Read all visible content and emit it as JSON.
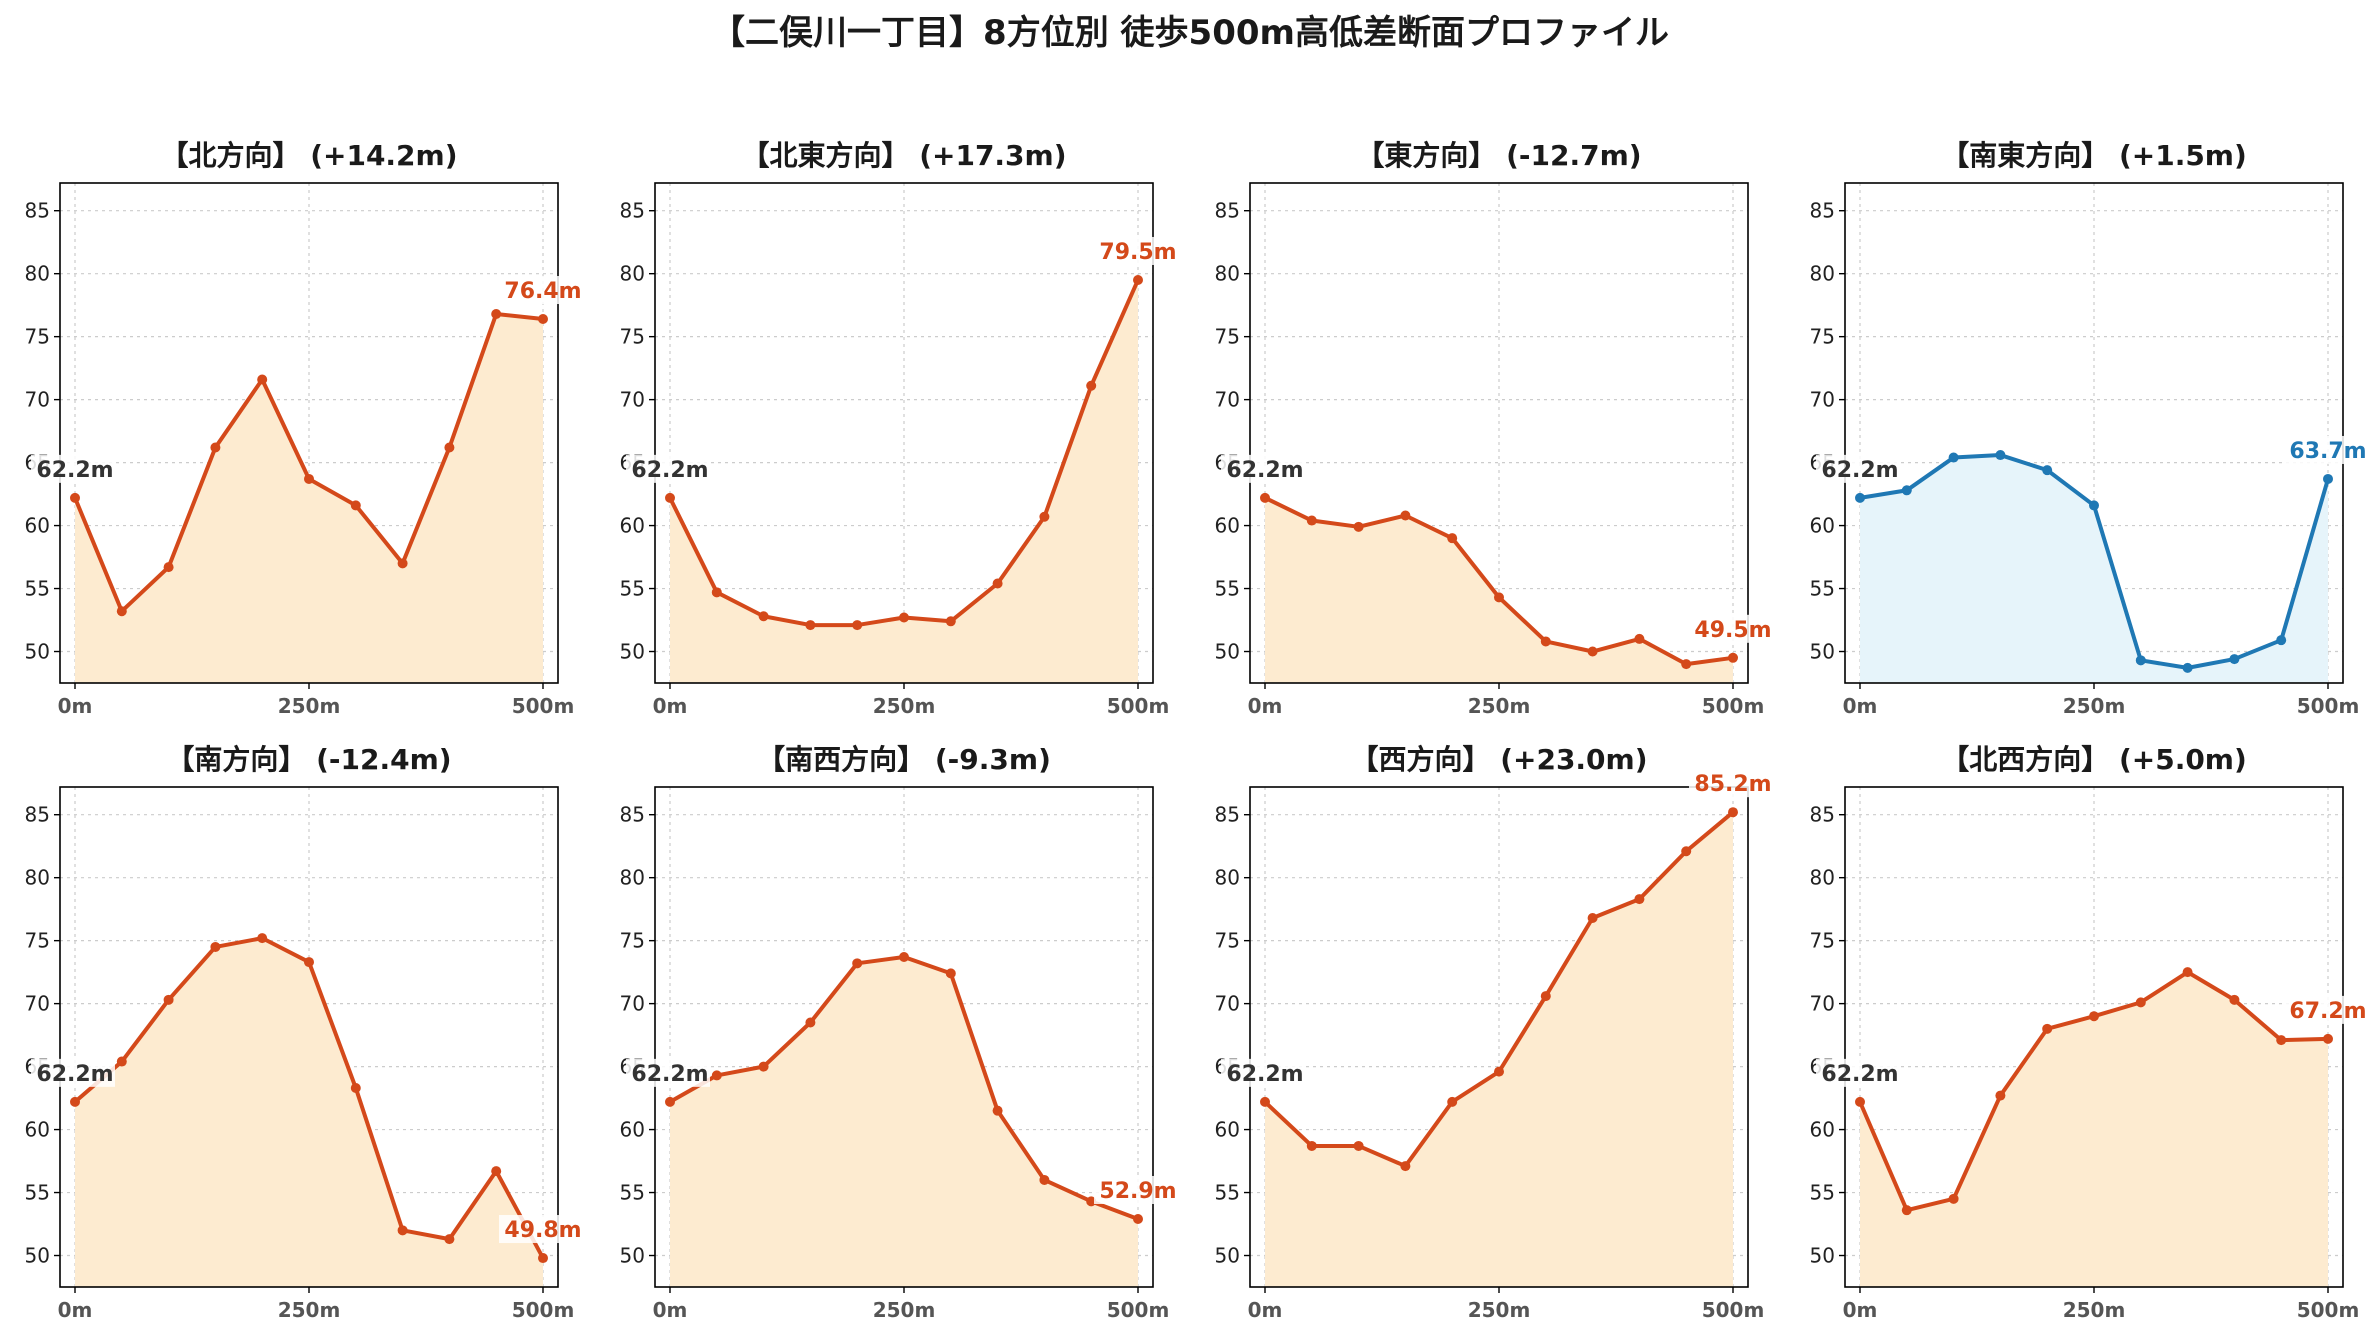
{
  "title": "【二俣川一丁目】8方位別 徒歩500m高低差断面プロファイル",
  "colors": {
    "default_line": "#d4491a",
    "default_fill": "#fdebd0",
    "flat_line": "#1f78b4",
    "flat_fill": "#e6f4fa",
    "start_label": "#333333",
    "grid": "#cccccc"
  },
  "chart_data": [
    {
      "type": "area",
      "title": "【北方向】 (+14.2m)",
      "x": [
        0,
        50,
        100,
        150,
        200,
        250,
        300,
        350,
        400,
        450,
        500
      ],
      "xticks": [
        "0m",
        "250m",
        "500m"
      ],
      "yticks": [
        50,
        55,
        60,
        65,
        70,
        75,
        80,
        85
      ],
      "ylim": [
        47.5,
        87.2
      ],
      "values": [
        62.2,
        53.2,
        56.7,
        66.2,
        71.6,
        63.7,
        61.6,
        57.0,
        66.2,
        76.8,
        76.4
      ],
      "start_label": "62.2m",
      "end_label": "76.4m",
      "style": "default",
      "grid": true
    },
    {
      "type": "area",
      "title": "【北東方向】 (+17.3m)",
      "x": [
        0,
        50,
        100,
        150,
        200,
        250,
        300,
        350,
        400,
        450,
        500
      ],
      "xticks": [
        "0m",
        "250m",
        "500m"
      ],
      "yticks": [
        50,
        55,
        60,
        65,
        70,
        75,
        80,
        85
      ],
      "ylim": [
        47.5,
        87.2
      ],
      "values": [
        62.2,
        54.7,
        52.8,
        52.1,
        52.1,
        52.7,
        52.4,
        55.4,
        60.7,
        71.1,
        79.5
      ],
      "start_label": "62.2m",
      "end_label": "79.5m",
      "style": "default",
      "grid": true
    },
    {
      "type": "area",
      "title": "【東方向】 (-12.7m)",
      "x": [
        0,
        50,
        100,
        150,
        200,
        250,
        300,
        350,
        400,
        450,
        500
      ],
      "xticks": [
        "0m",
        "250m",
        "500m"
      ],
      "yticks": [
        50,
        55,
        60,
        65,
        70,
        75,
        80,
        85
      ],
      "ylim": [
        47.5,
        87.2
      ],
      "values": [
        62.2,
        60.4,
        59.9,
        60.8,
        59.0,
        54.3,
        50.8,
        50.0,
        51.0,
        49.0,
        49.5
      ],
      "start_label": "62.2m",
      "end_label": "49.5m",
      "style": "default",
      "grid": true
    },
    {
      "type": "area",
      "title": "【南東方向】 (+1.5m)",
      "x": [
        0,
        50,
        100,
        150,
        200,
        250,
        300,
        350,
        400,
        450,
        500
      ],
      "xticks": [
        "0m",
        "250m",
        "500m"
      ],
      "yticks": [
        50,
        55,
        60,
        65,
        70,
        75,
        80,
        85
      ],
      "ylim": [
        47.5,
        87.2
      ],
      "values": [
        62.2,
        62.8,
        65.4,
        65.6,
        64.4,
        61.6,
        49.3,
        48.7,
        49.4,
        50.9,
        63.7
      ],
      "start_label": "62.2m",
      "end_label": "63.7m",
      "style": "flat",
      "grid": true
    },
    {
      "type": "area",
      "title": "【南方向】 (-12.4m)",
      "x": [
        0,
        50,
        100,
        150,
        200,
        250,
        300,
        350,
        400,
        450,
        500
      ],
      "xticks": [
        "0m",
        "250m",
        "500m"
      ],
      "yticks": [
        50,
        55,
        60,
        65,
        70,
        75,
        80,
        85
      ],
      "ylim": [
        47.5,
        87.2
      ],
      "values": [
        62.2,
        65.4,
        70.3,
        74.5,
        75.2,
        73.3,
        63.3,
        52.0,
        51.3,
        56.7,
        49.8
      ],
      "start_label": "62.2m",
      "end_label": "49.8m",
      "style": "default",
      "grid": true
    },
    {
      "type": "area",
      "title": "【南西方向】 (-9.3m)",
      "x": [
        0,
        50,
        100,
        150,
        200,
        250,
        300,
        350,
        400,
        450,
        500
      ],
      "xticks": [
        "0m",
        "250m",
        "500m"
      ],
      "yticks": [
        50,
        55,
        60,
        65,
        70,
        75,
        80,
        85
      ],
      "ylim": [
        47.5,
        87.2
      ],
      "values": [
        62.2,
        64.3,
        65.0,
        68.5,
        73.2,
        73.7,
        72.4,
        61.5,
        56.0,
        54.3,
        52.9
      ],
      "start_label": "62.2m",
      "end_label": "52.9m",
      "style": "default",
      "grid": true
    },
    {
      "type": "area",
      "title": "【西方向】 (+23.0m)",
      "x": [
        0,
        50,
        100,
        150,
        200,
        250,
        300,
        350,
        400,
        450,
        500
      ],
      "xticks": [
        "0m",
        "250m",
        "500m"
      ],
      "yticks": [
        50,
        55,
        60,
        65,
        70,
        75,
        80,
        85
      ],
      "ylim": [
        47.5,
        87.2
      ],
      "values": [
        62.2,
        58.7,
        58.7,
        57.1,
        62.2,
        64.6,
        70.6,
        76.8,
        78.3,
        82.1,
        85.2
      ],
      "start_label": "62.2m",
      "end_label": "85.2m",
      "style": "default",
      "grid": true
    },
    {
      "type": "area",
      "title": "【北西方向】 (+5.0m)",
      "x": [
        0,
        50,
        100,
        150,
        200,
        250,
        300,
        350,
        400,
        450,
        500
      ],
      "xticks": [
        "0m",
        "250m",
        "500m"
      ],
      "yticks": [
        50,
        55,
        60,
        65,
        70,
        75,
        80,
        85
      ],
      "ylim": [
        47.5,
        87.2
      ],
      "values": [
        62.2,
        53.6,
        54.5,
        62.7,
        68.0,
        69.0,
        70.1,
        72.5,
        70.3,
        67.1,
        67.2
      ],
      "start_label": "62.2m",
      "end_label": "67.2m",
      "style": "default",
      "grid": true
    }
  ]
}
